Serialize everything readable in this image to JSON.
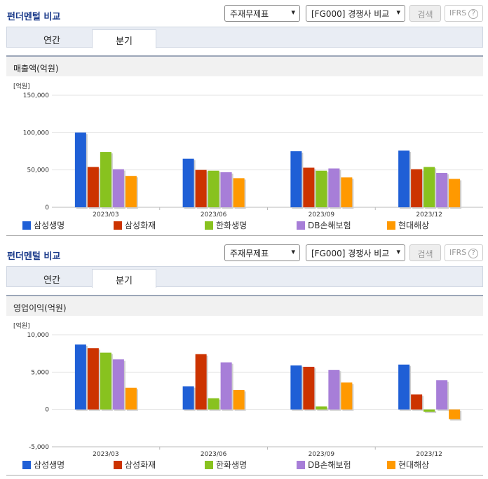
{
  "panels": [
    {
      "title": "펀더멘털 비교",
      "select1": "주재무제표",
      "select2": "[FG000] 경쟁사 비교",
      "search_label": "검색",
      "ifrs_label": "IFRS",
      "help_label": "?",
      "tabs": [
        "연간",
        "분기"
      ],
      "active_tab": 1,
      "subtitle": "매출액(억원)"
    },
    {
      "title": "펀더멘털 비교",
      "select1": "주재무제표",
      "select2": "[FG000] 경쟁사 비교",
      "search_label": "검색",
      "ifrs_label": "IFRS",
      "help_label": "?",
      "tabs": [
        "연간",
        "분기"
      ],
      "active_tab": 1,
      "subtitle": "영업이익(억원)"
    }
  ],
  "colors": {
    "series": [
      "#1f5fd6",
      "#cc3300",
      "#88c21f",
      "#a77ed8",
      "#ff9900"
    ]
  },
  "chart_data": [
    {
      "type": "bar",
      "unit_label": "[억원]",
      "categories": [
        "2023/03",
        "2023/06",
        "2023/09",
        "2023/12"
      ],
      "ylim": [
        0,
        150000
      ],
      "yticks": [
        0,
        50000,
        100000,
        150000
      ],
      "ytick_labels": [
        "0",
        "50,000",
        "100,000",
        "150,000"
      ],
      "grid": true,
      "legend_position": "bottom",
      "series": [
        {
          "name": "삼성생명",
          "values": [
            100000,
            65000,
            75000,
            76000
          ]
        },
        {
          "name": "삼성화재",
          "values": [
            54000,
            50000,
            53000,
            51000
          ]
        },
        {
          "name": "한화생명",
          "values": [
            74000,
            49000,
            49000,
            54000
          ]
        },
        {
          "name": "DB손해보험",
          "values": [
            51000,
            47000,
            52000,
            46000
          ]
        },
        {
          "name": "현대해상",
          "values": [
            42000,
            39000,
            40000,
            38000
          ]
        }
      ]
    },
    {
      "type": "bar",
      "unit_label": "[억원]",
      "categories": [
        "2023/03",
        "2023/06",
        "2023/09",
        "2023/12"
      ],
      "ylim": [
        -5000,
        10000
      ],
      "yticks": [
        -5000,
        0,
        5000,
        10000
      ],
      "ytick_labels": [
        "-5,000",
        "0",
        "5,000",
        "10,000"
      ],
      "grid": true,
      "legend_position": "bottom",
      "series": [
        {
          "name": "삼성생명",
          "values": [
            8700,
            3100,
            5900,
            6000
          ]
        },
        {
          "name": "삼성화재",
          "values": [
            8200,
            7400,
            5700,
            2000
          ]
        },
        {
          "name": "한화생명",
          "values": [
            7600,
            1500,
            400,
            -300
          ]
        },
        {
          "name": "DB손해보험",
          "values": [
            6700,
            6300,
            5300,
            3900
          ]
        },
        {
          "name": "현대해상",
          "values": [
            2900,
            2600,
            3600,
            -1300
          ]
        }
      ]
    }
  ]
}
